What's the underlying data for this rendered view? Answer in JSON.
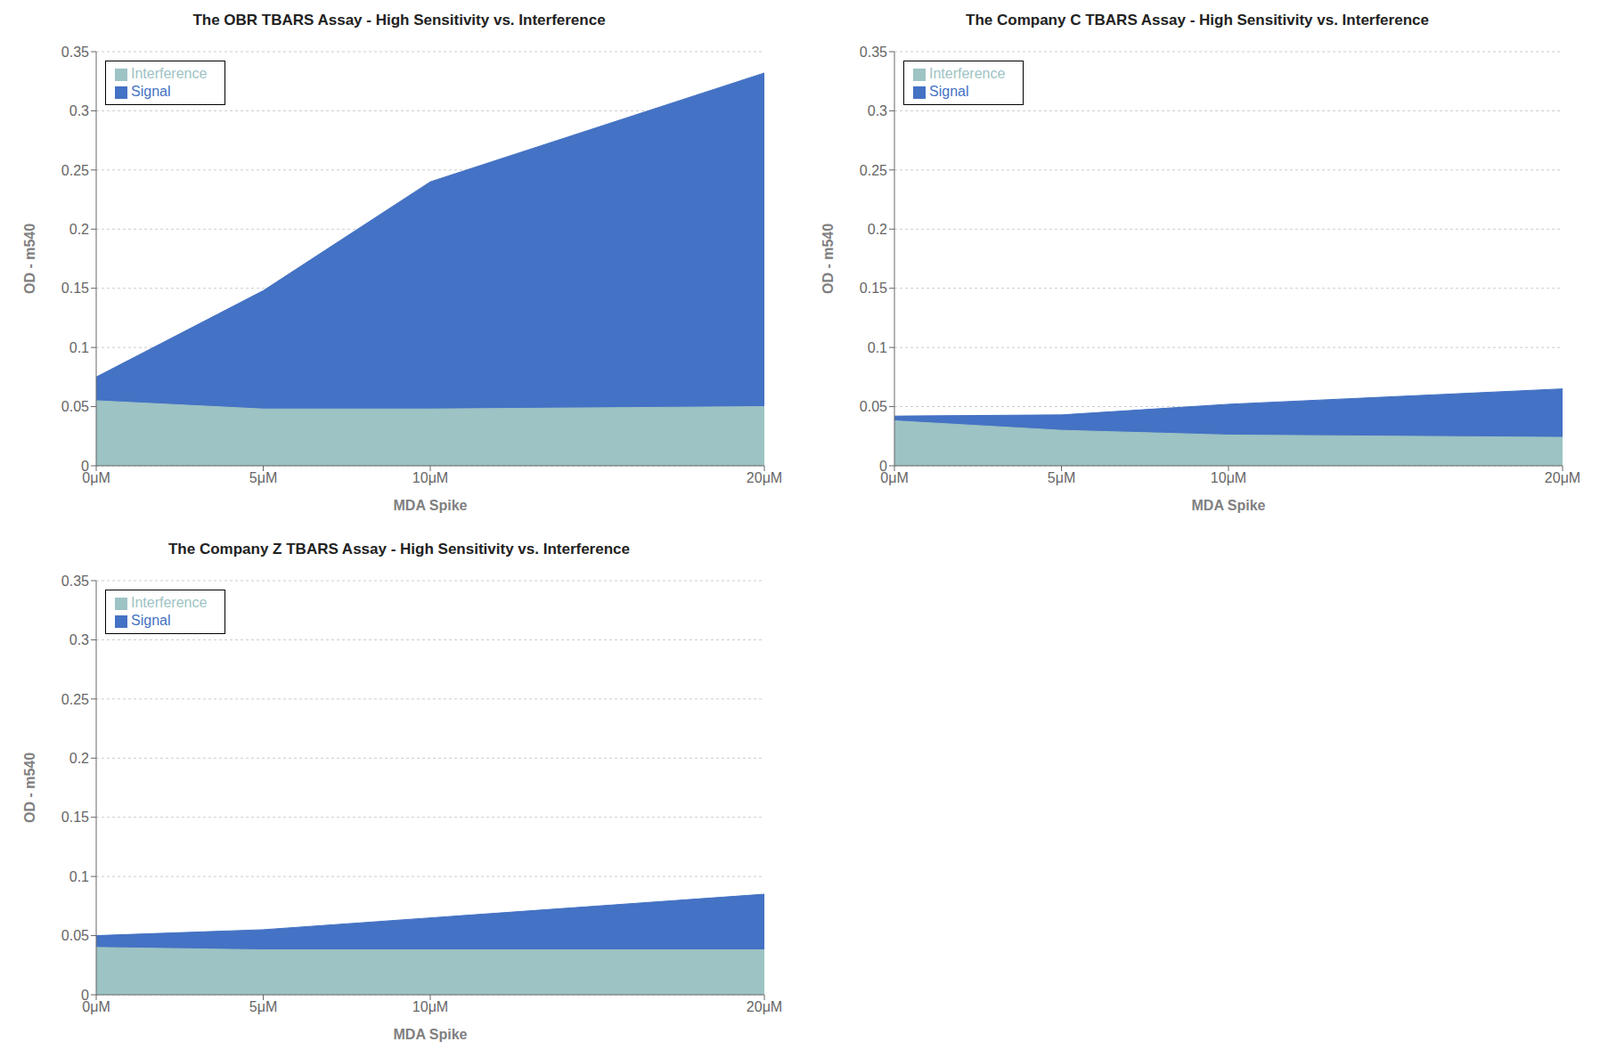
{
  "chart_data": [
    {
      "type": "area",
      "title": "The OBR TBARS Assay - High Sensitivity vs. Interference",
      "xlabel": "MDA Spike",
      "ylabel": "OD - m540",
      "x": [
        0,
        5,
        10,
        20
      ],
      "xlim": [
        0,
        20
      ],
      "xticks": [
        {
          "value": 0,
          "label": "0μM"
        },
        {
          "value": 5,
          "label": "5μM"
        },
        {
          "value": 10,
          "label": "10μM"
        },
        {
          "value": 20,
          "label": "20μM"
        }
      ],
      "ylim": [
        0,
        0.35
      ],
      "yticks": [
        0,
        0.05,
        0.1,
        0.15,
        0.2,
        0.25,
        0.3,
        0.35
      ],
      "grid": true,
      "legend": "upper left",
      "series": [
        {
          "name": "Signal",
          "color": "#4472C4",
          "values": [
            0.075,
            0.148,
            0.24,
            0.332
          ]
        },
        {
          "name": "Interference",
          "color": "#9DC3C4",
          "values": [
            0.055,
            0.048,
            0.048,
            0.05
          ]
        }
      ]
    },
    {
      "type": "area",
      "title": "The Company C TBARS Assay - High Sensitivity vs. Interference",
      "xlabel": "MDA Spike",
      "ylabel": "OD - m540",
      "x": [
        0,
        5,
        10,
        20
      ],
      "xlim": [
        0,
        20
      ],
      "xticks": [
        {
          "value": 0,
          "label": "0μM"
        },
        {
          "value": 5,
          "label": "5μM"
        },
        {
          "value": 10,
          "label": "10μM"
        },
        {
          "value": 20,
          "label": "20μM"
        }
      ],
      "ylim": [
        0,
        0.35
      ],
      "yticks": [
        0,
        0.05,
        0.1,
        0.15,
        0.2,
        0.25,
        0.3,
        0.35
      ],
      "grid": true,
      "legend": "upper left",
      "series": [
        {
          "name": "Signal",
          "color": "#4472C4",
          "values": [
            0.042,
            0.043,
            0.052,
            0.065
          ]
        },
        {
          "name": "Interference",
          "color": "#9DC3C4",
          "values": [
            0.038,
            0.03,
            0.026,
            0.024
          ]
        }
      ]
    },
    {
      "type": "area",
      "title": "The Company Z TBARS Assay - High Sensitivity vs. Interference",
      "xlabel": "MDA Spike",
      "ylabel": "OD - m540",
      "x": [
        0,
        5,
        10,
        20
      ],
      "xlim": [
        0,
        20
      ],
      "xticks": [
        {
          "value": 0,
          "label": "0μM"
        },
        {
          "value": 5,
          "label": "5μM"
        },
        {
          "value": 10,
          "label": "10μM"
        },
        {
          "value": 20,
          "label": "20μM"
        }
      ],
      "ylim": [
        0,
        0.35
      ],
      "yticks": [
        0,
        0.05,
        0.1,
        0.15,
        0.2,
        0.25,
        0.3,
        0.35
      ],
      "grid": true,
      "legend": "upper left",
      "series": [
        {
          "name": "Signal",
          "color": "#4472C4",
          "values": [
            0.05,
            0.055,
            0.065,
            0.085
          ]
        },
        {
          "name": "Interference",
          "color": "#9DC3C4",
          "values": [
            0.04,
            0.038,
            0.038,
            0.038
          ]
        }
      ]
    }
  ]
}
